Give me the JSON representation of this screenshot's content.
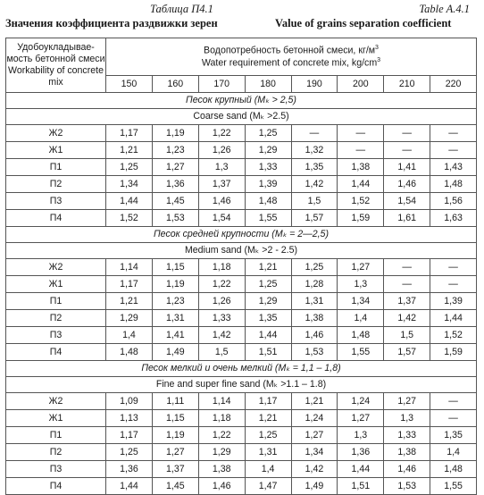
{
  "header": {
    "caption_ru": "Таблица П4.1",
    "caption_en": "Table A.4.1",
    "title_ru": "Значения коэффициента раздвижки зерен",
    "title_en": "Value of grains separation coefficient"
  },
  "table": {
    "workability_ru_1": "Удобоукладывае-",
    "workability_ru_2": "мость бетонной смеси",
    "workability_en_1": "Workability of concrete",
    "workability_en_2": "mix",
    "water_ru": "Водопотребность бетонной смеси, кг/м",
    "water_ru_sup": "3",
    "water_en": "Water requirement of concrete mix, kg/cm",
    "water_en_sup": "3",
    "columns": [
      "150",
      "160",
      "170",
      "180",
      "190",
      "200",
      "210",
      "220"
    ],
    "sections": [
      {
        "ru": "Песок крупный (Мₖ > 2,5)",
        "en": "Coarse sand (Mₖ >2.5)",
        "rows": [
          {
            "label": "Ж2",
            "values": [
              "1,17",
              "1,19",
              "1,22",
              "1,25",
              "—",
              "—",
              "—",
              "—"
            ]
          },
          {
            "label": "Ж1",
            "values": [
              "1,21",
              "1,23",
              "1,26",
              "1,29",
              "1,32",
              "—",
              "—",
              "—"
            ]
          },
          {
            "label": "П1",
            "values": [
              "1,25",
              "1,27",
              "1,3",
              "1,33",
              "1,35",
              "1,38",
              "1,41",
              "1,43"
            ]
          },
          {
            "label": "П2",
            "values": [
              "1,34",
              "1,36",
              "1,37",
              "1,39",
              "1,42",
              "1,44",
              "1,46",
              "1,48"
            ]
          },
          {
            "label": "П3",
            "values": [
              "1,44",
              "1,45",
              "1,46",
              "1,48",
              "1,5",
              "1,52",
              "1,54",
              "1,56"
            ]
          },
          {
            "label": "П4",
            "values": [
              "1,52",
              "1,53",
              "1,54",
              "1,55",
              "1,57",
              "1,59",
              "1,61",
              "1,63"
            ]
          }
        ]
      },
      {
        "ru": "Песок средней крупности (Мₖ = 2—2,5)",
        "en": "Medium sand (Mₖ >2 - 2.5)",
        "rows": [
          {
            "label": "Ж2",
            "values": [
              "1,14",
              "1,15",
              "1,18",
              "1,21",
              "1,25",
              "1,27",
              "—",
              "—"
            ]
          },
          {
            "label": "Ж1",
            "values": [
              "1,17",
              "1,19",
              "1,22",
              "1,25",
              "1,28",
              "1,3",
              "—",
              "—"
            ]
          },
          {
            "label": "П1",
            "values": [
              "1,21",
              "1,23",
              "1,26",
              "1,29",
              "1,31",
              "1,34",
              "1,37",
              "1,39"
            ]
          },
          {
            "label": "П2",
            "values": [
              "1,29",
              "1,31",
              "1,33",
              "1,35",
              "1,38",
              "1,4",
              "1,42",
              "1,44"
            ]
          },
          {
            "label": "П3",
            "values": [
              "1,4",
              "1,41",
              "1,42",
              "1,44",
              "1,46",
              "1,48",
              "1,5",
              "1,52"
            ]
          },
          {
            "label": "П4",
            "values": [
              "1,48",
              "1,49",
              "1,5",
              "1,51",
              "1,53",
              "1,55",
              "1,57",
              "1,59"
            ]
          }
        ]
      },
      {
        "ru": "Песок мелкий и очень мелкий (Мₖ = 1,1 – 1,8)",
        "en": "Fine and super fine sand (Mₖ >1.1 – 1.8)",
        "rows": [
          {
            "label": "Ж2",
            "values": [
              "1,09",
              "1,11",
              "1,14",
              "1,17",
              "1,21",
              "1,24",
              "1,27",
              "—"
            ]
          },
          {
            "label": "Ж1",
            "values": [
              "1,13",
              "1,15",
              "1,18",
              "1,21",
              "1,24",
              "1,27",
              "1,3",
              "—"
            ]
          },
          {
            "label": "П1",
            "values": [
              "1,17",
              "1,19",
              "1,22",
              "1,25",
              "1,27",
              "1,3",
              "1,33",
              "1,35"
            ]
          },
          {
            "label": "П2",
            "values": [
              "1,25",
              "1,27",
              "1,29",
              "1,31",
              "1,34",
              "1,36",
              "1,38",
              "1,4"
            ]
          },
          {
            "label": "П3",
            "values": [
              "1,36",
              "1,37",
              "1,38",
              "1,4",
              "1,42",
              "1,44",
              "1,46",
              "1,48"
            ]
          },
          {
            "label": "П4",
            "values": [
              "1,44",
              "1,45",
              "1,46",
              "1,47",
              "1,49",
              "1,51",
              "1,53",
              "1,55"
            ]
          }
        ]
      }
    ]
  }
}
